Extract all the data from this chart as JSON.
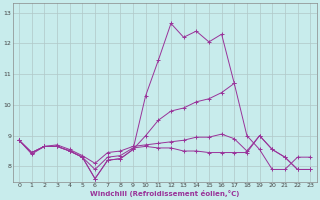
{
  "xlabel": "Windchill (Refroidissement éolien,°C)",
  "background_color": "#c8ecec",
  "grid_color": "#b0c8c8",
  "line_color": "#993399",
  "xlim": [
    -0.5,
    23.5
  ],
  "ylim": [
    7.5,
    13.3
  ],
  "xticks": [
    0,
    1,
    2,
    3,
    4,
    5,
    6,
    7,
    8,
    9,
    10,
    11,
    12,
    13,
    14,
    15,
    16,
    17,
    18,
    19,
    20,
    21,
    22,
    23
  ],
  "yticks": [
    8,
    9,
    10,
    11,
    12,
    13
  ],
  "series": [
    [
      8.85,
      8.4,
      8.65,
      8.65,
      8.5,
      8.3,
      7.6,
      8.2,
      8.25,
      8.55,
      10.3,
      11.45,
      12.65,
      12.2,
      12.4,
      12.05,
      12.3,
      10.7
    ],
    [
      8.85,
      8.45,
      8.65,
      8.65,
      8.5,
      8.3,
      7.6,
      8.2,
      8.25,
      8.55,
      9.0,
      9.5,
      9.8,
      9.9,
      10.1,
      10.2,
      10.4,
      10.7,
      9.0,
      8.55,
      7.9,
      7.9,
      8.3,
      8.3
    ],
    [
      8.85,
      8.45,
      8.65,
      8.65,
      8.5,
      8.3,
      7.9,
      8.3,
      8.35,
      8.6,
      8.65,
      8.6,
      8.6,
      8.5,
      8.5,
      8.45,
      8.45,
      8.45,
      8.45,
      9.0,
      8.55,
      8.3,
      7.9,
      7.9
    ],
    [
      8.85,
      8.45,
      8.65,
      8.7,
      8.55,
      8.35,
      8.1,
      8.45,
      8.5,
      8.65,
      8.7,
      8.75,
      8.8,
      8.85,
      8.95,
      8.95,
      9.05,
      8.9,
      8.5,
      9.0,
      8.55,
      8.3,
      7.9,
      7.9
    ]
  ],
  "series_x": [
    [
      0,
      1,
      2,
      3,
      4,
      5,
      6,
      7,
      8,
      9,
      10,
      11,
      12,
      13,
      14,
      15,
      16,
      17
    ],
    [
      0,
      1,
      2,
      3,
      4,
      5,
      6,
      7,
      8,
      9,
      10,
      11,
      12,
      13,
      14,
      15,
      16,
      17,
      18,
      19,
      20,
      21,
      22,
      23
    ],
    [
      0,
      1,
      2,
      3,
      4,
      5,
      6,
      7,
      8,
      9,
      10,
      11,
      12,
      13,
      14,
      15,
      16,
      17,
      18,
      19,
      20,
      21,
      22,
      23
    ],
    [
      0,
      1,
      2,
      3,
      4,
      5,
      6,
      7,
      8,
      9,
      10,
      11,
      12,
      13,
      14,
      15,
      16,
      17,
      18,
      19,
      20,
      21,
      22,
      23
    ]
  ]
}
